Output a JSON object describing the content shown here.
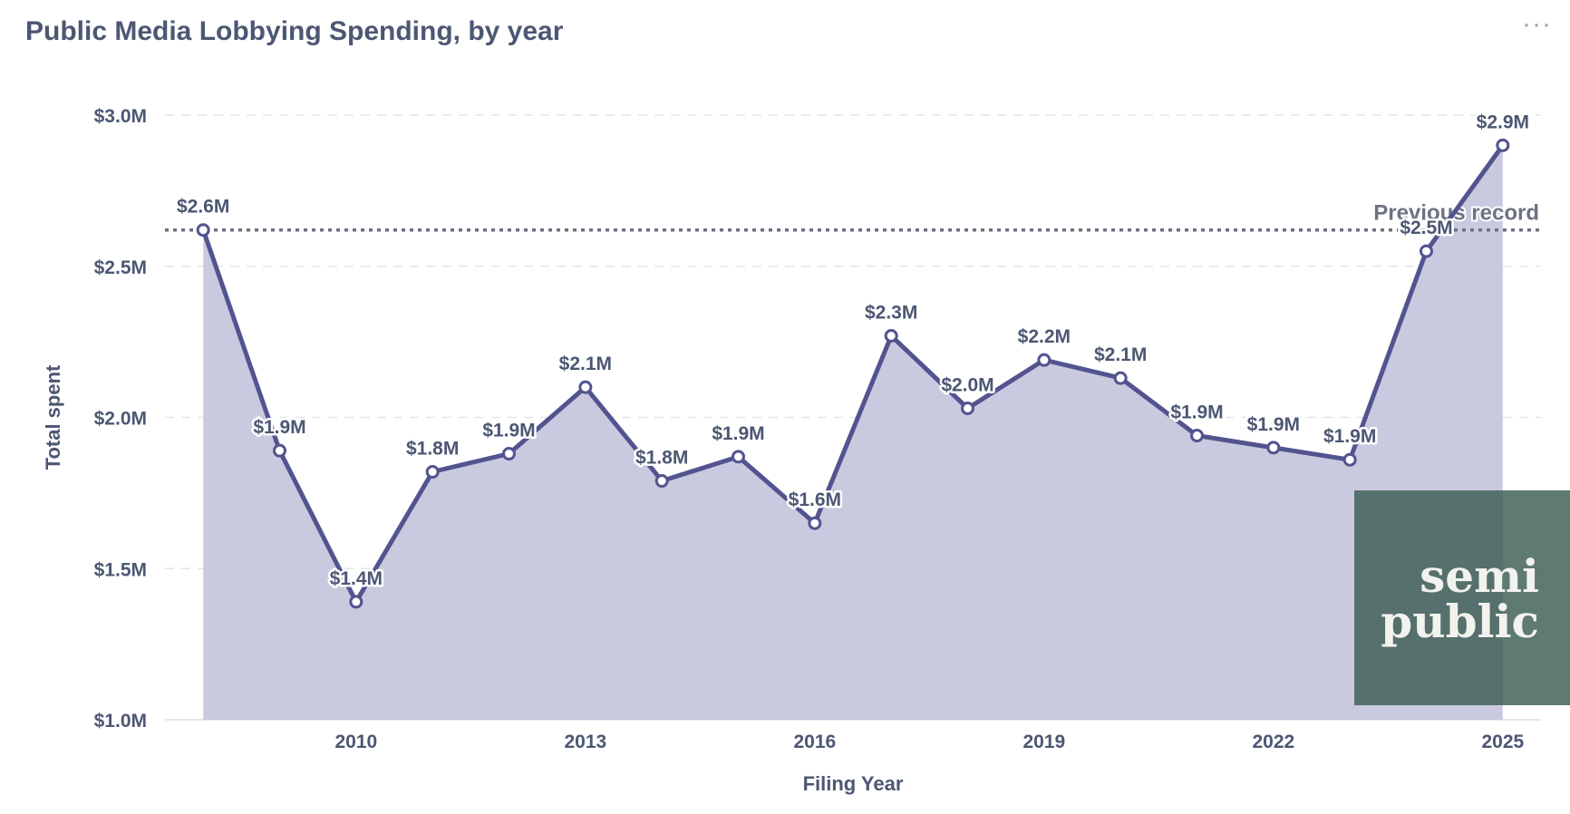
{
  "header": {
    "title": "Public Media Lobbying Spending, by year",
    "menu_label": "···"
  },
  "watermark": {
    "line1": "semi",
    "line2": "public"
  },
  "colors": {
    "line": "#52548f",
    "area": "#c9cadf",
    "text": "#4c5773",
    "reference": "#6c7280"
  },
  "chart_data": {
    "type": "area",
    "title": "Public Media Lobbying Spending, by year",
    "xlabel": "Filing Year",
    "ylabel": "Total spent",
    "x": [
      2008,
      2009,
      2010,
      2011,
      2012,
      2013,
      2014,
      2015,
      2016,
      2017,
      2018,
      2019,
      2020,
      2021,
      2022,
      2023,
      2024,
      2025
    ],
    "values": [
      2.62,
      1.89,
      1.39,
      1.82,
      1.88,
      2.1,
      1.79,
      1.87,
      1.65,
      2.27,
      2.03,
      2.19,
      2.13,
      1.94,
      1.9,
      1.86,
      2.55,
      2.9
    ],
    "data_labels": [
      "$2.6M",
      "$1.9M",
      "$1.4M",
      "$1.8M",
      "$1.9M",
      "$2.1M",
      "$1.8M",
      "$1.9M",
      "$1.6M",
      "$2.3M",
      "$2.0M",
      "$2.2M",
      "$2.1M",
      "$1.9M",
      "$1.9M",
      "$1.9M",
      "$2.5M",
      "$2.9M"
    ],
    "x_ticks": [
      "2010",
      "2013",
      "2016",
      "2019",
      "2022",
      "2025"
    ],
    "x_tick_values": [
      2010,
      2013,
      2016,
      2019,
      2022,
      2025
    ],
    "y_ticks": [
      "$1.0M",
      "$1.5M",
      "$2.0M",
      "$2.5M",
      "$3.0M"
    ],
    "y_tick_values": [
      1.0,
      1.5,
      2.0,
      2.5,
      3.0
    ],
    "ylim": [
      1.0,
      3.0
    ],
    "xlim": [
      2007.5,
      2025.5
    ],
    "grid": true,
    "reference_line": {
      "value": 2.62,
      "label": "Previous record"
    }
  }
}
